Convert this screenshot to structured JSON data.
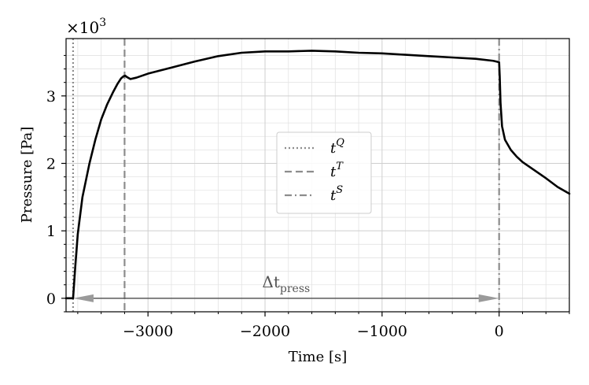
{
  "chart_data": {
    "type": "line",
    "title": "",
    "xlabel": "Time [s]",
    "ylabel": "Pressure [Pa]",
    "y_multiplier_label": "×10",
    "y_multiplier_exponent": "3",
    "xlim": [
      -3700,
      600
    ],
    "ylim": [
      -0.2,
      3.85
    ],
    "x_ticks": [
      -3000,
      -2000,
      -1000,
      0
    ],
    "x_tick_labels": [
      "−3000",
      "−2000",
      "−1000",
      "0"
    ],
    "y_ticks": [
      0,
      1,
      2,
      3
    ],
    "y_tick_labels": [
      "0",
      "1",
      "2",
      "3"
    ],
    "grid": true,
    "minor_grid": true,
    "legend_position": "center",
    "series": [
      {
        "color": "#000000",
        "x": [
          -3700,
          -3640,
          -3620,
          -3600,
          -3560,
          -3500,
          -3450,
          -3400,
          -3350,
          -3300,
          -3260,
          -3230,
          -3210,
          -3195,
          -3180,
          -3150,
          -3100,
          -3000,
          -2800,
          -2600,
          -2400,
          -2200,
          -2000,
          -1800,
          -1600,
          -1400,
          -1200,
          -1000,
          -800,
          -600,
          -400,
          -200,
          -50,
          0,
          5,
          12,
          25,
          50,
          100,
          150,
          200,
          300,
          400,
          500,
          600
        ],
        "y": [
          0.0,
          0.0,
          0.5,
          0.95,
          1.5,
          2.0,
          2.35,
          2.65,
          2.87,
          3.05,
          3.18,
          3.26,
          3.29,
          3.3,
          3.28,
          3.25,
          3.27,
          3.33,
          3.42,
          3.51,
          3.59,
          3.64,
          3.66,
          3.66,
          3.67,
          3.66,
          3.64,
          3.63,
          3.61,
          3.59,
          3.57,
          3.55,
          3.52,
          3.5,
          3.3,
          2.9,
          2.55,
          2.35,
          2.2,
          2.1,
          2.02,
          1.9,
          1.78,
          1.65,
          1.55
        ]
      }
    ],
    "vlines": [
      {
        "x": -3640,
        "style": "dotted",
        "label": "t",
        "sup": "Q"
      },
      {
        "x": -3200,
        "style": "dashed",
        "label": "t",
        "sup": "T"
      },
      {
        "x": 0,
        "style": "dashdot",
        "label": "t",
        "sup": "S"
      }
    ],
    "annotation": {
      "text_main": "Δt",
      "text_sub": "press",
      "x_start": -3640,
      "x_end": 0,
      "y": 0
    },
    "colors": {
      "line": "#000000",
      "vline": "#8c8c8c",
      "arrow": "#5a5a5a",
      "grid": "#e3e3e3"
    }
  }
}
